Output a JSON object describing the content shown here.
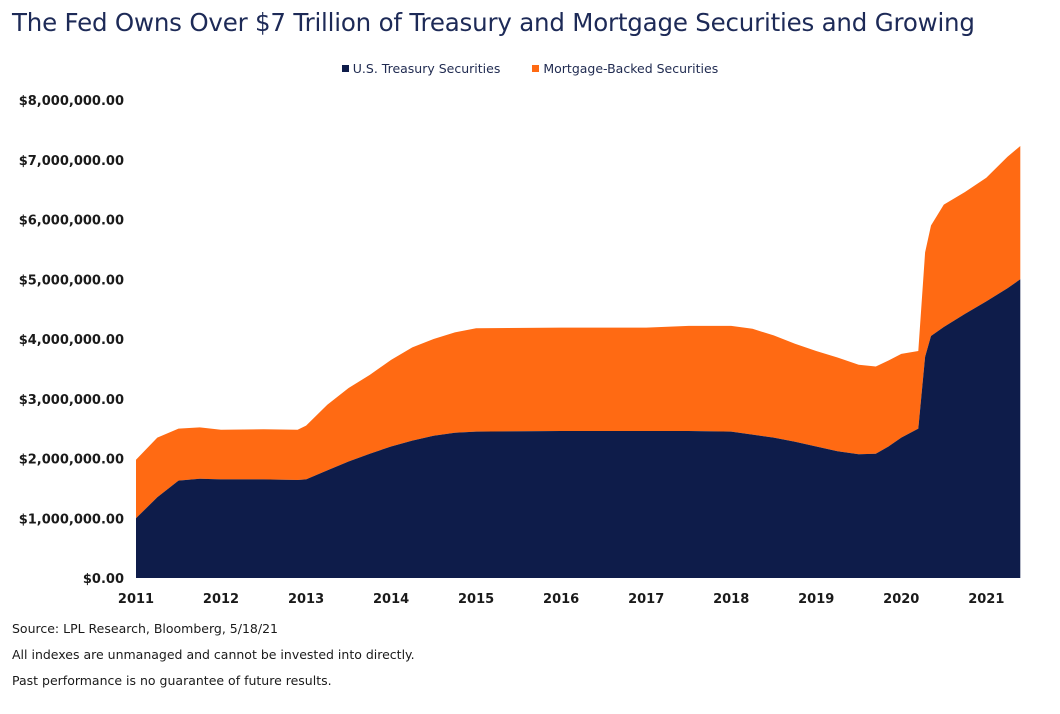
{
  "chart_data": {
    "type": "area",
    "stacked": true,
    "title": "The Fed Owns Over $7 Trillion of Treasury and Mortgage Securities and Growing",
    "xlabel": "",
    "ylabel": "",
    "ylim": [
      0,
      8000000
    ],
    "xlim": [
      2011,
      2021.42
    ],
    "y_ticks": [
      "$0.00",
      "$1,000,000.00",
      "$2,000,000.00",
      "$3,000,000.00",
      "$4,000,000.00",
      "$5,000,000.00",
      "$6,000,000.00",
      "$7,000,000.00",
      "$8,000,000.00"
    ],
    "x_ticks": [
      "2011",
      "2012",
      "2013",
      "2014",
      "2015",
      "2016",
      "2017",
      "2018",
      "2019",
      "2020",
      "2021"
    ],
    "legend_position": "top-center",
    "x": [
      2011.0,
      2011.25,
      2011.5,
      2011.75,
      2012.0,
      2012.5,
      2012.9,
      2013.0,
      2013.25,
      2013.5,
      2013.75,
      2014.0,
      2014.25,
      2014.5,
      2014.75,
      2015.0,
      2016.0,
      2017.0,
      2017.5,
      2018.0,
      2018.25,
      2018.5,
      2018.75,
      2019.0,
      2019.25,
      2019.5,
      2019.7,
      2019.85,
      2020.0,
      2020.2,
      2020.28,
      2020.35,
      2020.5,
      2020.75,
      2021.0,
      2021.25,
      2021.4
    ],
    "series": [
      {
        "name": "U.S. Treasury Securities",
        "color": "#0e1c4a",
        "values": [
          1000000,
          1350000,
          1630000,
          1660000,
          1650000,
          1650000,
          1640000,
          1650000,
          1800000,
          1950000,
          2080000,
          2200000,
          2300000,
          2380000,
          2430000,
          2450000,
          2460000,
          2460000,
          2460000,
          2450000,
          2400000,
          2350000,
          2280000,
          2200000,
          2120000,
          2070000,
          2080000,
          2200000,
          2350000,
          2500000,
          3700000,
          4050000,
          4200000,
          4420000,
          4630000,
          4850000,
          5000000
        ]
      },
      {
        "name": "Mortgage-Backed Securities",
        "color": "#ff6a13",
        "values": [
          980000,
          1000000,
          870000,
          860000,
          830000,
          840000,
          840000,
          900000,
          1100000,
          1230000,
          1320000,
          1450000,
          1560000,
          1620000,
          1680000,
          1730000,
          1730000,
          1730000,
          1760000,
          1770000,
          1770000,
          1710000,
          1640000,
          1600000,
          1570000,
          1500000,
          1460000,
          1440000,
          1400000,
          1300000,
          1750000,
          1850000,
          2050000,
          2040000,
          2070000,
          2200000,
          2230000
        ]
      }
    ]
  },
  "footer": {
    "source": "Source: LPL Research, Bloomberg, 5/18/21",
    "disclaimer1": "All indexes are unmanaged and cannot be invested into directly.",
    "disclaimer2": "Past performance is no guarantee of future results."
  }
}
